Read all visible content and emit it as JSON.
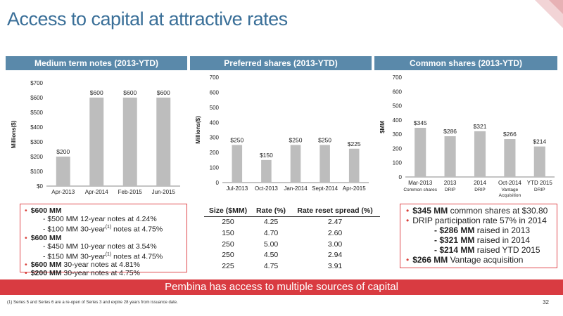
{
  "title": "Access to capital at attractive rates",
  "colors": {
    "accent": "#3a6f98",
    "header_bg": "#5a89aa",
    "bar": "#bdbdbd",
    "red": "#d93b41"
  },
  "panels": [
    {
      "header": "Medium term notes (2013-YTD)"
    },
    {
      "header": "Preferred shares (2013-YTD)"
    },
    {
      "header": "Common shares (2013-YTD)"
    }
  ],
  "chart_data": [
    {
      "type": "bar",
      "ylabel": "Millions($)",
      "ylim": [
        0,
        700
      ],
      "yticks": [
        "$0",
        "$100",
        "$200",
        "$300",
        "$400",
        "$500",
        "$600",
        "$700"
      ],
      "categories": [
        "Apr-2013",
        "Apr-2014",
        "Feb-2015",
        "Jun-2015"
      ],
      "values": [
        200,
        600,
        600,
        600
      ],
      "labels": [
        "$200",
        "$600",
        "$600",
        "$600"
      ]
    },
    {
      "type": "bar",
      "ylabel": "Millions($)",
      "ylim": [
        0,
        700
      ],
      "yticks": [
        "0",
        "100",
        "200",
        "300",
        "400",
        "500",
        "600",
        "700"
      ],
      "categories": [
        "Jul-2013",
        "Oct-2013",
        "Jan-2014",
        "Sept-2014",
        "Apr-2015"
      ],
      "values": [
        250,
        150,
        250,
        250,
        225
      ],
      "labels": [
        "$250",
        "$150",
        "$250",
        "$250",
        "$225"
      ]
    },
    {
      "type": "bar",
      "ylabel": "$MM",
      "ylim": [
        0,
        700
      ],
      "yticks": [
        "0",
        "100",
        "200",
        "300",
        "400",
        "500",
        "600",
        "700"
      ],
      "categories": [
        "Mar-2013",
        "2013",
        "2014",
        "Oct-2014",
        "YTD 2015"
      ],
      "subcategories": [
        "Common shares",
        "DRIP",
        "DRIP",
        "Vantage Acquisition",
        "DRIP"
      ],
      "values": [
        345,
        286,
        321,
        266,
        214
      ],
      "labels": [
        "$345",
        "$286",
        "$321",
        "$266",
        "$214"
      ]
    }
  ],
  "mtn": {
    "items": [
      {
        "bold": "$600 MM",
        "rest": ""
      },
      {
        "sub": "- $500 MM 12-year notes at 4.24%"
      },
      {
        "sub_a": "- $100 MM 30-year",
        "sup": "(1)",
        "sub_b": " notes at 4.75%"
      },
      {
        "bold": "$600 MM",
        "rest": ""
      },
      {
        "sub": "- $450 MM 10-year notes at 3.54%"
      },
      {
        "sub_a": "- $150 MM 30-year",
        "sup": "(1)",
        "sub_b": " notes at 4.75%"
      },
      {
        "bold": "$600 MM",
        "rest": " 30-year notes at 4.81%"
      },
      {
        "bold": "$200 MM",
        "rest": " 30-year notes at 4.75%"
      }
    ]
  },
  "pref_table": {
    "headers": [
      "Size ($MM)",
      "Rate (%)",
      "Rate reset spread (%)"
    ],
    "rows": [
      [
        "250",
        "4.25",
        "2.47"
      ],
      [
        "150",
        "4.70",
        "2.60"
      ],
      [
        "250",
        "5.00",
        "3.00"
      ],
      [
        "250",
        "4.50",
        "2.94"
      ],
      [
        "225",
        "4.75",
        "3.91"
      ]
    ]
  },
  "common": {
    "l1_bold": "$345 MM",
    "l1_rest": " common shares at  $30.80",
    "l2": "DRIP participation rate 57% in 2014",
    "l3_bold": "- $286 MM",
    "l3_rest": " raised in 2013",
    "l4_bold": "- $321 MM",
    "l4_rest": " raised in 2014",
    "l5_bold": "- $214 MM",
    "l5_rest": " raised YTD 2015",
    "l6_bold": "$266 MM",
    "l6_rest": " Vantage acquisition"
  },
  "banner": "Pembina has access to multiple sources of capital",
  "footnote": "(1)  Series 5 and Series 6 are a re-open of Series 3 and expire 28 years from issuance date.",
  "page_number": "32"
}
